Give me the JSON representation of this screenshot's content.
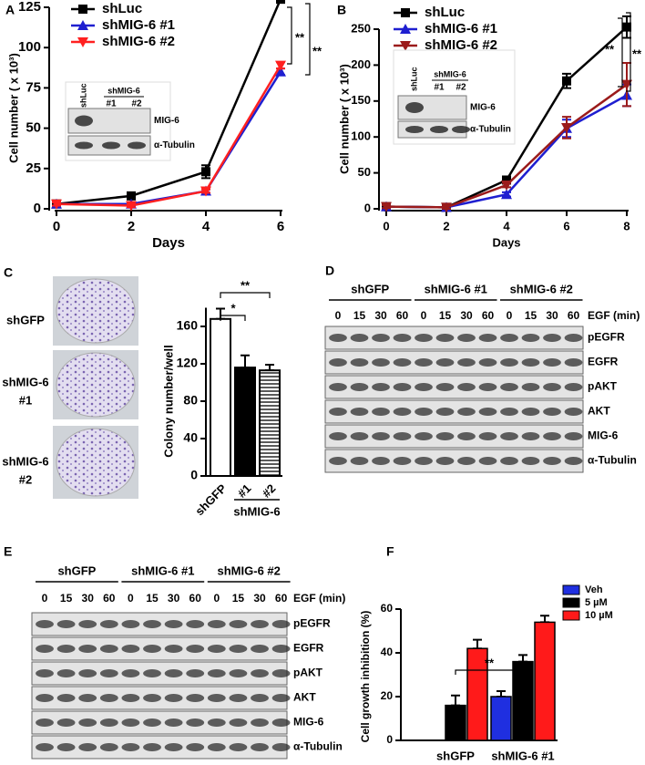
{
  "panel_labels": [
    "A",
    "B",
    "C",
    "D",
    "E",
    "F"
  ],
  "chart_data": [
    {
      "type": "line",
      "y_label": "Cell number ( x 10³)",
      "x_label": "Days",
      "x": [
        0,
        2,
        4,
        6
      ],
      "xlim": [
        0,
        6
      ],
      "xticks": [
        0,
        2,
        4,
        6
      ],
      "ylim": [
        0,
        125
      ],
      "yticks": [
        0,
        25,
        50,
        75,
        100,
        125
      ],
      "series": [
        {
          "name": "shLuc",
          "color": "#000000",
          "marker": "square",
          "values": [
            3,
            8,
            23,
            130
          ],
          "errors": [
            1,
            1,
            4,
            2
          ]
        },
        {
          "name": "shMIG-6 #1",
          "color": "#1f1fd0",
          "marker": "triangle-up",
          "values": [
            3,
            3,
            11,
            85
          ],
          "errors": [
            1,
            1,
            1,
            2
          ]
        },
        {
          "name": "shMIG-6 #2",
          "color": "#ff2020",
          "marker": "triangle-down",
          "values": [
            3,
            2,
            11,
            89
          ],
          "errors": [
            1,
            1,
            1,
            2
          ]
        }
      ],
      "annotations": [
        "**",
        "**"
      ],
      "inset": {
        "lanes": [
          "shLuc"
        ],
        "group": "shMIG-6",
        "sublanes": [
          "#1",
          "#2"
        ],
        "rows": [
          "MIG-6",
          "α-Tubulin"
        ]
      }
    },
    {
      "type": "line",
      "y_label": "Cell number ( x 10³)",
      "x_label": "Days",
      "x": [
        0,
        2,
        4,
        6,
        8
      ],
      "xlim": [
        0,
        8
      ],
      "xticks": [
        0,
        2,
        4,
        6,
        8
      ],
      "ylim": [
        0,
        250
      ],
      "yticks": [
        0,
        50,
        100,
        150,
        200,
        250
      ],
      "series": [
        {
          "name": "shLuc",
          "color": "#000000",
          "marker": "square",
          "values": [
            3,
            2,
            40,
            178,
            253
          ],
          "errors": [
            2,
            2,
            4,
            10,
            15
          ]
        },
        {
          "name": "shMIG-6 #1",
          "color": "#1f1fd0",
          "marker": "triangle-up",
          "values": [
            3,
            2,
            20,
            112,
            158
          ],
          "errors": [
            2,
            2,
            3,
            12,
            15
          ]
        },
        {
          "name": "shMIG-6 #2",
          "color": "#9b1b1b",
          "marker": "triangle-down",
          "values": [
            3,
            2,
            33,
            113,
            173
          ],
          "errors": [
            2,
            2,
            3,
            15,
            30
          ]
        }
      ],
      "annotations": [
        "**",
        "**"
      ],
      "inset": {
        "lanes": [
          "shLuc"
        ],
        "group": "shMIG-6",
        "sublanes": [
          "#1",
          "#2"
        ],
        "rows": [
          "MIG-6",
          "α-Tubulin"
        ]
      }
    },
    {
      "type": "bar",
      "y_label": "Colony number/well",
      "categories": [
        "shGFP",
        "#1",
        "#2"
      ],
      "group_label": "shMIG-6",
      "values": [
        168,
        116,
        113
      ],
      "errors": [
        11,
        13,
        6
      ],
      "patterns": [
        "open",
        "solid",
        "striped"
      ],
      "ylim": [
        0,
        180
      ],
      "yticks": [
        0,
        40,
        80,
        120,
        160
      ],
      "annotations": [
        "*",
        "**"
      ],
      "plate_labels": [
        [
          "shGFP"
        ],
        [
          "shMIG-6",
          "#1"
        ],
        [
          "shMIG-6",
          "#2"
        ]
      ]
    },
    {
      "type": "grouped_bar",
      "y_label": "Cell growth inhibition (%)",
      "categories": [
        "shGFP",
        "shMIG-6 #1"
      ],
      "series": [
        {
          "name": "Veh",
          "color": "#1f2fe0",
          "values": [
            0,
            20
          ],
          "errors": [
            0,
            2.5
          ]
        },
        {
          "name": "5 µM",
          "color": "#000000",
          "values": [
            16,
            36
          ],
          "errors": [
            4.5,
            3
          ]
        },
        {
          "name": "10 µM",
          "color": "#ff1a1a",
          "values": [
            42,
            54
          ],
          "errors": [
            4,
            3
          ]
        }
      ],
      "ylim": [
        0,
        60
      ],
      "yticks": [
        0,
        20,
        40,
        60
      ],
      "annotations": [
        "**"
      ]
    }
  ],
  "blots": [
    {
      "groups": [
        "shGFP",
        "shMIG-6 #1",
        "shMIG-6 #2"
      ],
      "times": [
        0,
        15,
        30,
        60
      ],
      "treatment": "EGF (min)",
      "rows": [
        "pEGFR",
        "EGFR",
        "pAKT",
        "AKT",
        "MIG-6",
        "α-Tubulin"
      ]
    },
    {
      "groups": [
        "shGFP",
        "shMIG-6 #1",
        "shMIG-6 #2"
      ],
      "times": [
        0,
        15,
        30,
        60
      ],
      "treatment": "EGF (min)",
      "rows": [
        "pEGFR",
        "EGFR",
        "pAKT",
        "AKT",
        "MIG-6",
        "α-Tubulin"
      ]
    }
  ]
}
